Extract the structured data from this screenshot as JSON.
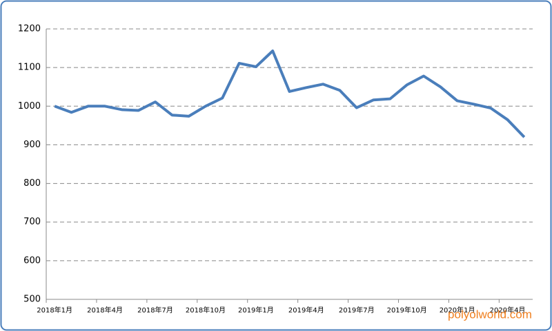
{
  "chart_data": {
    "type": "line",
    "categories": [
      "2018年1月",
      null,
      null,
      "2018年4月",
      null,
      null,
      "2018年7月",
      null,
      null,
      "2018年10月",
      null,
      null,
      "2019年1月",
      null,
      null,
      "2019年4月",
      null,
      null,
      "2019年7月",
      null,
      null,
      "2019年10月",
      null,
      null,
      "2020年1月",
      null,
      null,
      "2020年4月",
      null
    ],
    "series": [
      {
        "color": "#4a7ebb",
        "values": [
          1000,
          984,
          1000,
          1000,
          991,
          989,
          1011,
          977,
          974,
          1000,
          1021,
          1111,
          1102,
          1143,
          1038,
          1048,
          1057,
          1041,
          996,
          1016,
          1019,
          1055,
          1078,
          1050,
          1014,
          1005,
          995,
          965,
          920
        ]
      }
    ],
    "ylim": [
      500,
      1200
    ],
    "yticks": [
      500,
      600,
      700,
      800,
      900,
      1000,
      1100,
      1200
    ],
    "grid": true,
    "watermark": "polyolworld.com"
  }
}
